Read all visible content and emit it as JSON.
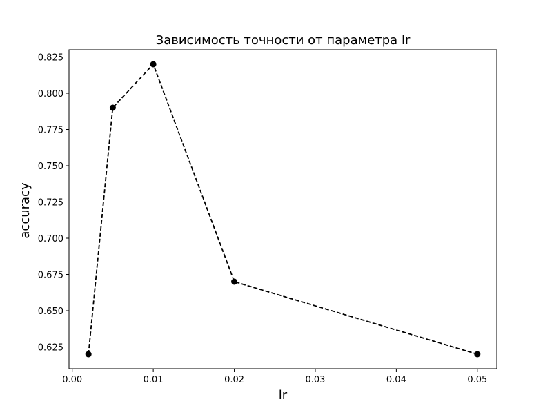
{
  "chart_data": {
    "type": "line",
    "title": "Зависимость точности от параметра lr",
    "xlabel": "lr",
    "ylabel": "accuracy",
    "xlim": [
      -0.0004,
      0.0524
    ],
    "ylim": [
      0.61,
      0.83
    ],
    "xticks": [
      0.0,
      0.01,
      0.02,
      0.03,
      0.04,
      0.05
    ],
    "xtick_labels": [
      "0.00",
      "0.01",
      "0.02",
      "0.03",
      "0.04",
      "0.05"
    ],
    "yticks": [
      0.625,
      0.65,
      0.675,
      0.7,
      0.725,
      0.75,
      0.775,
      0.8,
      0.825
    ],
    "ytick_labels": [
      "0.625",
      "0.650",
      "0.675",
      "0.700",
      "0.725",
      "0.750",
      "0.775",
      "0.800",
      "0.825"
    ],
    "grid": false,
    "series": [
      {
        "x": [
          0.002,
          0.005,
          0.01,
          0.02,
          0.05
        ],
        "y": [
          0.62,
          0.79,
          0.82,
          0.67,
          0.62
        ],
        "color": "#000000",
        "linestyle": "dashed",
        "marker": "circle"
      }
    ]
  }
}
